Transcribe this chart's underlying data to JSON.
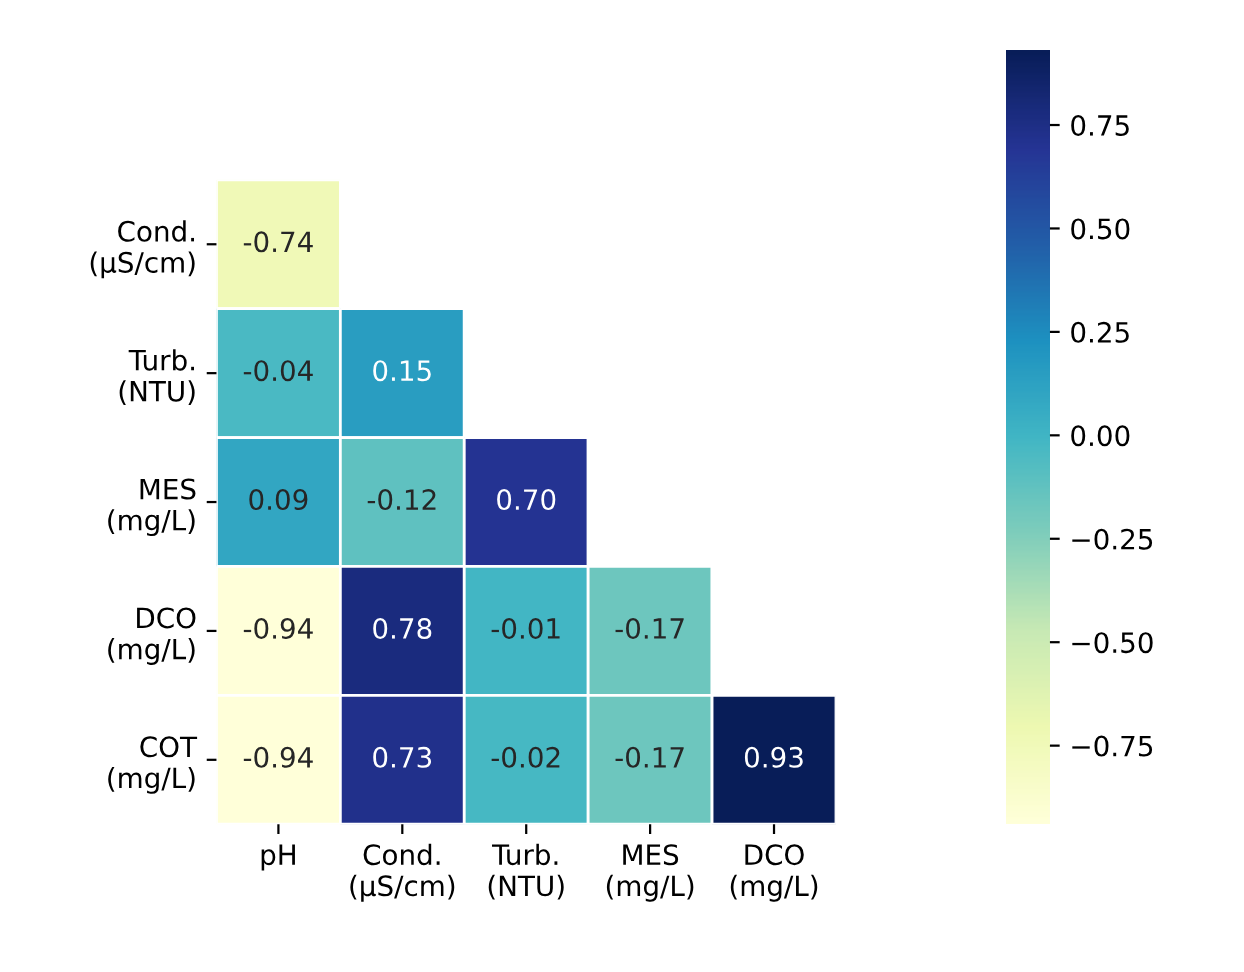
{
  "chart_data": {
    "type": "heatmap",
    "categories": [
      "pH",
      "Cond.\n(µS/cm)",
      "Turb.\n(NTU)",
      "MES\n(mg/L)",
      "DCO\n(mg/L)"
    ],
    "y_categories": [
      "Cond.\n(µS/cm)",
      "Turb.\n(NTU)",
      "MES\n(mg/L)",
      "DCO\n(mg/L)",
      "COT\n(mg/L)"
    ],
    "cells": [
      [
        -0.74,
        null,
        null,
        null,
        null
      ],
      [
        -0.04,
        0.15,
        null,
        null,
        null
      ],
      [
        0.09,
        -0.12,
        0.7,
        null,
        null
      ],
      [
        -0.94,
        0.78,
        -0.01,
        -0.17,
        null
      ],
      [
        -0.94,
        0.73,
        -0.02,
        -0.17,
        0.93
      ]
    ],
    "cell_labels": [
      [
        "-0.74",
        null,
        null,
        null,
        null
      ],
      [
        "-0.04",
        "0.15",
        null,
        null,
        null
      ],
      [
        "0.09",
        "-0.12",
        "0.70",
        null,
        null
      ],
      [
        "-0.94",
        "0.78",
        "-0.01",
        "-0.17",
        null
      ],
      [
        "-0.94",
        "0.73",
        "-0.02",
        "-0.17",
        "0.93"
      ]
    ],
    "clim": [
      -0.94,
      0.93
    ],
    "cticks": [
      {
        "value": -0.75,
        "label": "−0.75"
      },
      {
        "value": -0.5,
        "label": "−0.50"
      },
      {
        "value": -0.25,
        "label": "−0.25"
      },
      {
        "value": 0,
        "label": "0.00"
      },
      {
        "value": 0.25,
        "label": "0.25"
      },
      {
        "value": 0.5,
        "label": "0.50"
      },
      {
        "value": 0.75,
        "label": "0.75"
      }
    ]
  }
}
